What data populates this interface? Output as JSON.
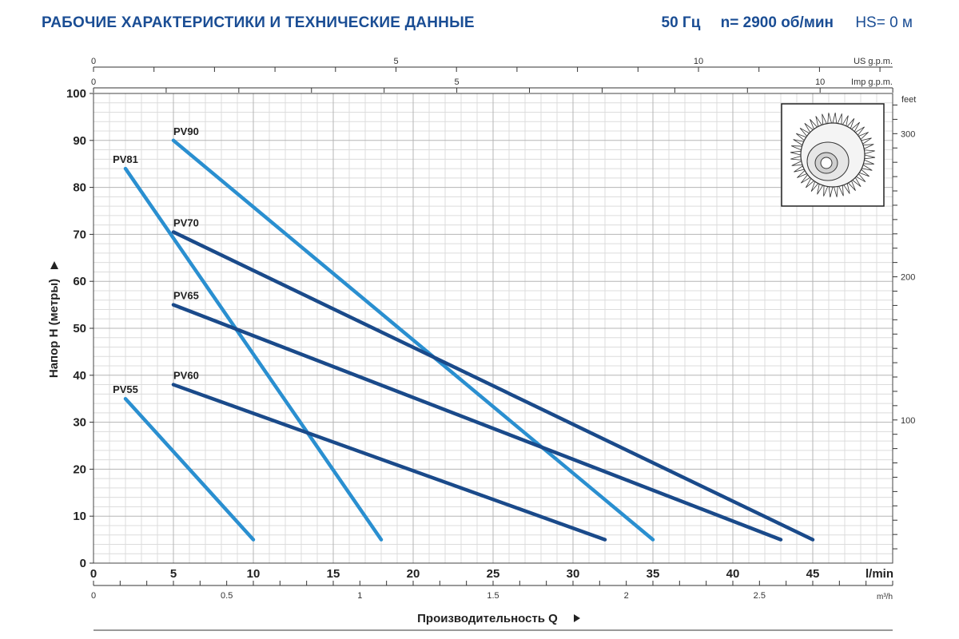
{
  "header": {
    "title": "РАБОЧИЕ ХАРАКТЕРИСТИКИ И ТЕХНИЧЕСКИЕ ДАННЫЕ",
    "freq": "50 Гц",
    "speed": "n= 2900 об/мин",
    "hs": "HS= 0 м"
  },
  "chart_data": {
    "type": "line",
    "xlabel": "Производительность Q",
    "ylabel": "Напор H (метры)",
    "x_unit": "l/min",
    "xlim": [
      0,
      50
    ],
    "ylim": [
      0,
      100
    ],
    "x_ticks": [
      0,
      5,
      10,
      15,
      20,
      25,
      30,
      35,
      40,
      45
    ],
    "y_ticks": [
      0,
      10,
      20,
      30,
      40,
      50,
      60,
      70,
      80,
      90,
      100
    ],
    "grid": true,
    "secondary_axes": {
      "us_gpm": {
        "label": "US g.p.m.",
        "ticks": [
          0,
          5,
          10
        ]
      },
      "imp_gpm": {
        "label": "Imp g.p.m.",
        "ticks": [
          0,
          5,
          10
        ]
      },
      "m3h": {
        "label": "m³/h",
        "ticks": [
          "0",
          "0.5",
          "1",
          "1.5",
          "2",
          "2.5"
        ]
      },
      "feet": {
        "label": "feet",
        "ticks": [
          100,
          200,
          300
        ]
      }
    },
    "series": [
      {
        "name": "PV90",
        "color": "#2a8fd0",
        "points": [
          [
            5,
            90
          ],
          [
            35,
            5
          ]
        ]
      },
      {
        "name": "PV81",
        "color": "#2a8fd0",
        "points": [
          [
            2,
            84
          ],
          [
            18,
            5
          ]
        ]
      },
      {
        "name": "PV70",
        "color": "#1a4a8a",
        "points": [
          [
            5,
            70.5
          ],
          [
            45,
            5
          ]
        ]
      },
      {
        "name": "PV65",
        "color": "#1a4a8a",
        "points": [
          [
            5,
            55
          ],
          [
            43,
            5
          ]
        ]
      },
      {
        "name": "PV60",
        "color": "#1a4a8a",
        "points": [
          [
            5,
            38
          ],
          [
            32,
            5
          ]
        ]
      },
      {
        "name": "PV55",
        "color": "#2a8fd0",
        "points": [
          [
            2,
            35
          ],
          [
            10,
            5
          ]
        ]
      }
    ]
  },
  "icons": {
    "impeller": "impeller-icon",
    "arrow": "right-triangle-arrow-icon"
  }
}
